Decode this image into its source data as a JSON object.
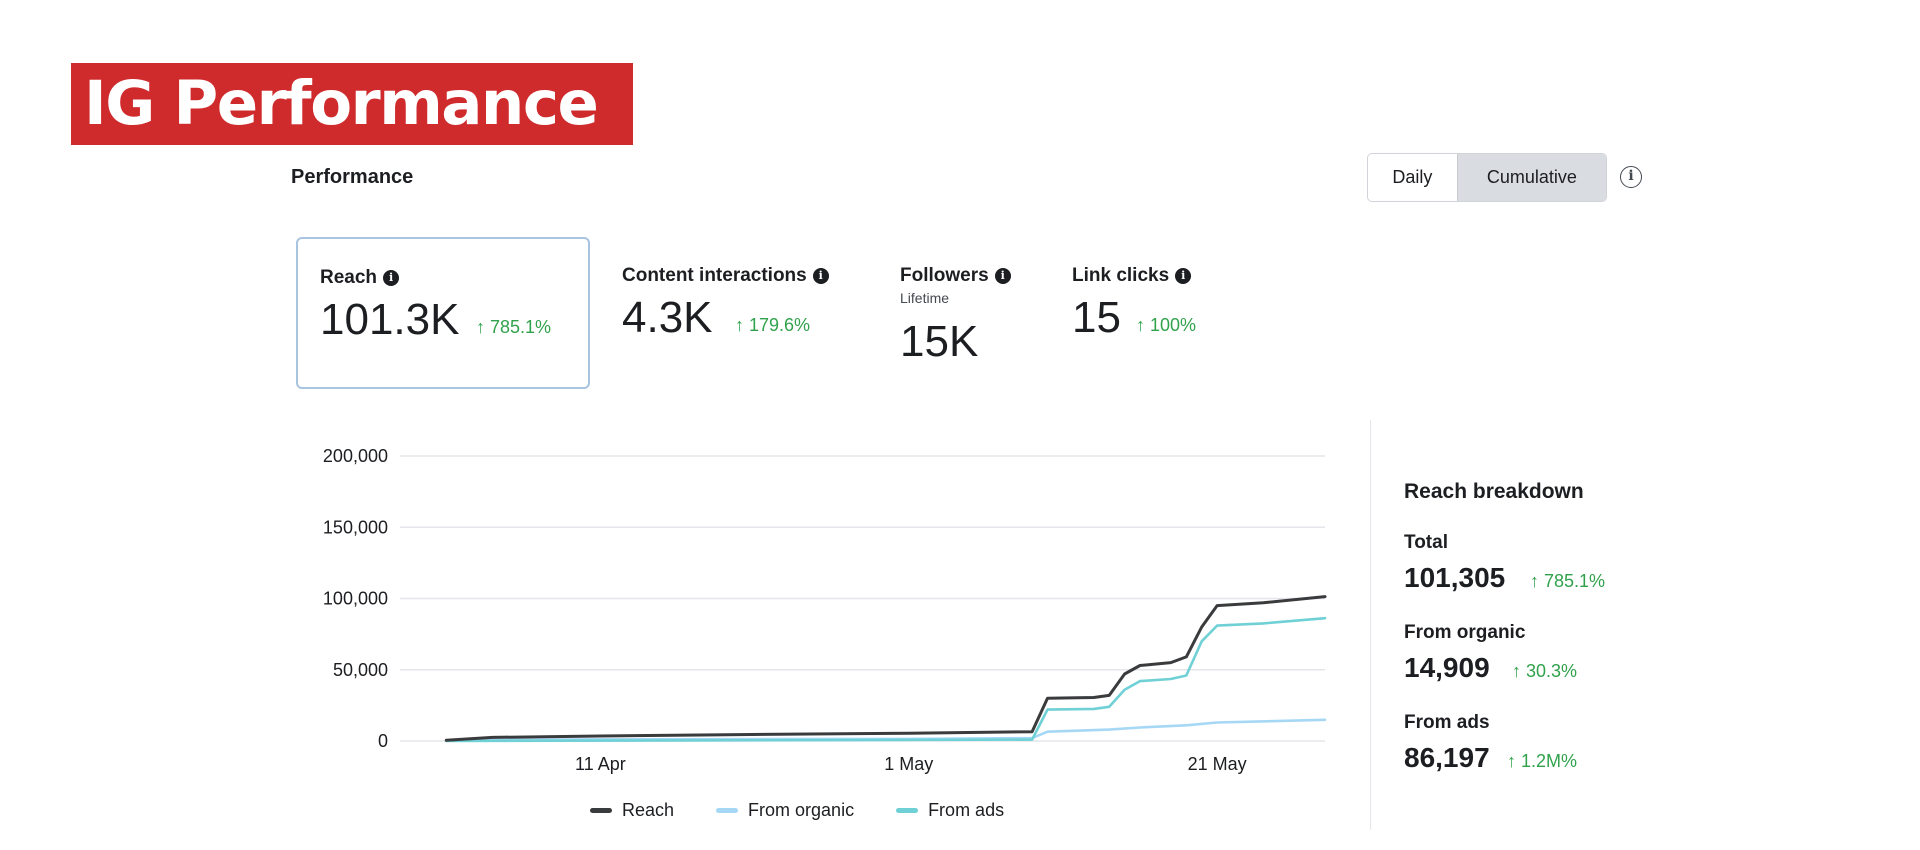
{
  "banner": {
    "title": "IG Performance"
  },
  "section": {
    "title": "Performance"
  },
  "toggle": {
    "daily": "Daily",
    "cumulative": "Cumulative"
  },
  "metrics": [
    {
      "label": "Reach",
      "value": "101.3K",
      "change": "↑ 785.1%",
      "sub": ""
    },
    {
      "label": "Content interactions",
      "value": "4.3K",
      "change": "↑ 179.6%",
      "sub": ""
    },
    {
      "label": "Followers",
      "value": "15K",
      "change": "",
      "sub": "Lifetime"
    },
    {
      "label": "Link clicks",
      "value": "15",
      "change": "↑ 100%",
      "sub": ""
    }
  ],
  "breakdown": {
    "title": "Reach breakdown",
    "items": [
      {
        "label": "Total",
        "value": "101,305",
        "change": "↑ 785.1%"
      },
      {
        "label": "From organic",
        "value": "14,909",
        "change": "↑ 30.3%"
      },
      {
        "label": "From ads",
        "value": "86,197",
        "change": "↑ 1.2M%"
      }
    ]
  },
  "colors": {
    "banner": "#cf2a2c",
    "reach": "#3a3b3d",
    "organic": "#a6d8f5",
    "ads": "#6fd0d6",
    "positive": "#31a24c"
  },
  "chart_data": {
    "type": "line",
    "title": "",
    "xlabel": "",
    "ylabel": "",
    "ylim": [
      0,
      200000
    ],
    "y_ticks": [
      0,
      50000,
      100000,
      150000,
      200000
    ],
    "y_tick_labels": [
      "0",
      "50,000",
      "100,000",
      "150,000",
      "200,000"
    ],
    "x_range": [
      "2025-03-29",
      "2025-05-28"
    ],
    "x_ticks": [
      "2025-04-11",
      "2025-05-01",
      "2025-05-21"
    ],
    "x_tick_labels": [
      "11 Apr",
      "1 May",
      "21 May"
    ],
    "grid": true,
    "legend_position": "bottom",
    "series": [
      {
        "name": "Reach",
        "color": "#3a3b3d",
        "points": [
          [
            "2025-04-01",
            500
          ],
          [
            "2025-04-04",
            2500
          ],
          [
            "2025-04-11",
            3500
          ],
          [
            "2025-04-20",
            4500
          ],
          [
            "2025-05-01",
            5500
          ],
          [
            "2025-05-09",
            6500
          ],
          [
            "2025-05-10",
            30000
          ],
          [
            "2025-05-13",
            30500
          ],
          [
            "2025-05-14",
            32000
          ],
          [
            "2025-05-15",
            47000
          ],
          [
            "2025-05-16",
            53000
          ],
          [
            "2025-05-18",
            55000
          ],
          [
            "2025-05-19",
            59000
          ],
          [
            "2025-05-20",
            80000
          ],
          [
            "2025-05-21",
            95000
          ],
          [
            "2025-05-24",
            97000
          ],
          [
            "2025-05-28",
            101305
          ]
        ]
      },
      {
        "name": "From organic",
        "color": "#a6d8f5",
        "points": [
          [
            "2025-04-01",
            300
          ],
          [
            "2025-04-04",
            800
          ],
          [
            "2025-04-11",
            1200
          ],
          [
            "2025-05-01",
            1500
          ],
          [
            "2025-05-09",
            2000
          ],
          [
            "2025-05-10",
            6500
          ],
          [
            "2025-05-14",
            8000
          ],
          [
            "2025-05-16",
            9500
          ],
          [
            "2025-05-19",
            11000
          ],
          [
            "2025-05-21",
            13000
          ],
          [
            "2025-05-28",
            14909
          ]
        ]
      },
      {
        "name": "From ads",
        "color": "#6fd0d6",
        "points": [
          [
            "2025-04-01",
            0
          ],
          [
            "2025-05-09",
            1000
          ],
          [
            "2025-05-10",
            22000
          ],
          [
            "2025-05-13",
            22500
          ],
          [
            "2025-05-14",
            24000
          ],
          [
            "2025-05-15",
            36000
          ],
          [
            "2025-05-16",
            42000
          ],
          [
            "2025-05-18",
            43500
          ],
          [
            "2025-05-19",
            46000
          ],
          [
            "2025-05-20",
            70000
          ],
          [
            "2025-05-21",
            81000
          ],
          [
            "2025-05-24",
            82500
          ],
          [
            "2025-05-28",
            86197
          ]
        ]
      }
    ]
  }
}
